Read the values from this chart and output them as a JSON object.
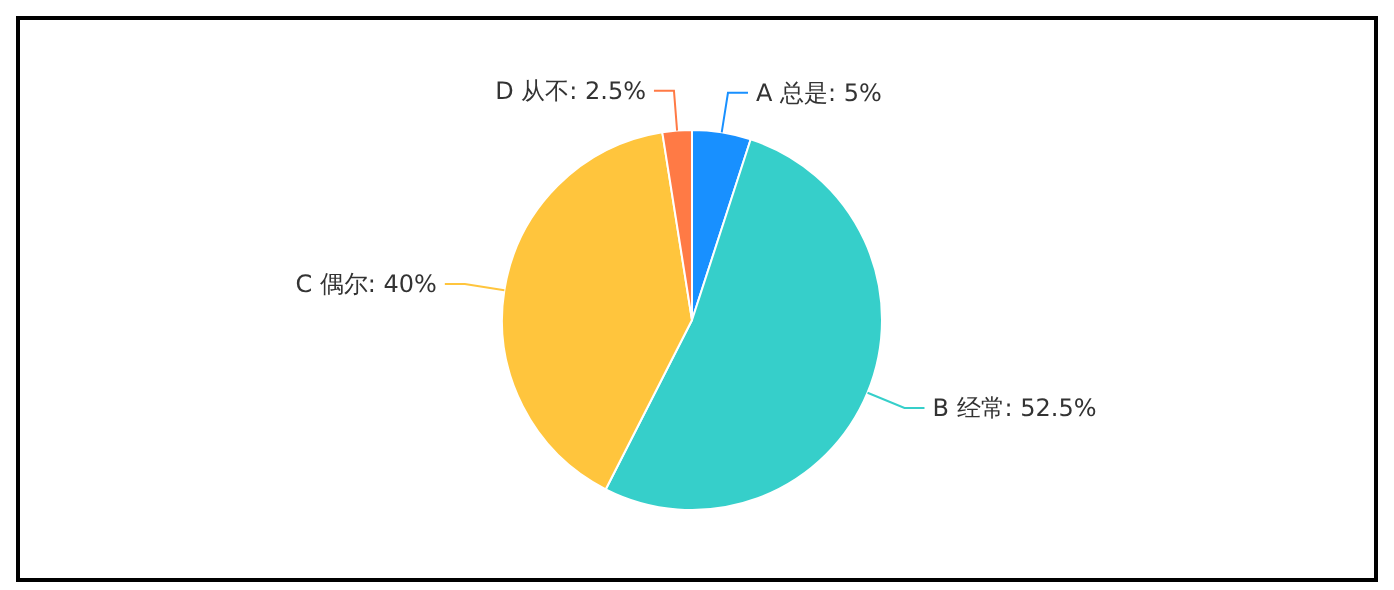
{
  "chart_data": {
    "type": "pie",
    "categories": [
      "A 总是",
      "B 经常",
      "C 偶尔",
      "D 从不"
    ],
    "values": [
      5,
      52.5,
      40,
      2.5
    ],
    "value_labels": [
      "5%",
      "52.5%",
      "40%",
      "2.5%"
    ],
    "colors": [
      "#1890ff",
      "#36cfca",
      "#ffc53d",
      "#ff7a45"
    ]
  }
}
